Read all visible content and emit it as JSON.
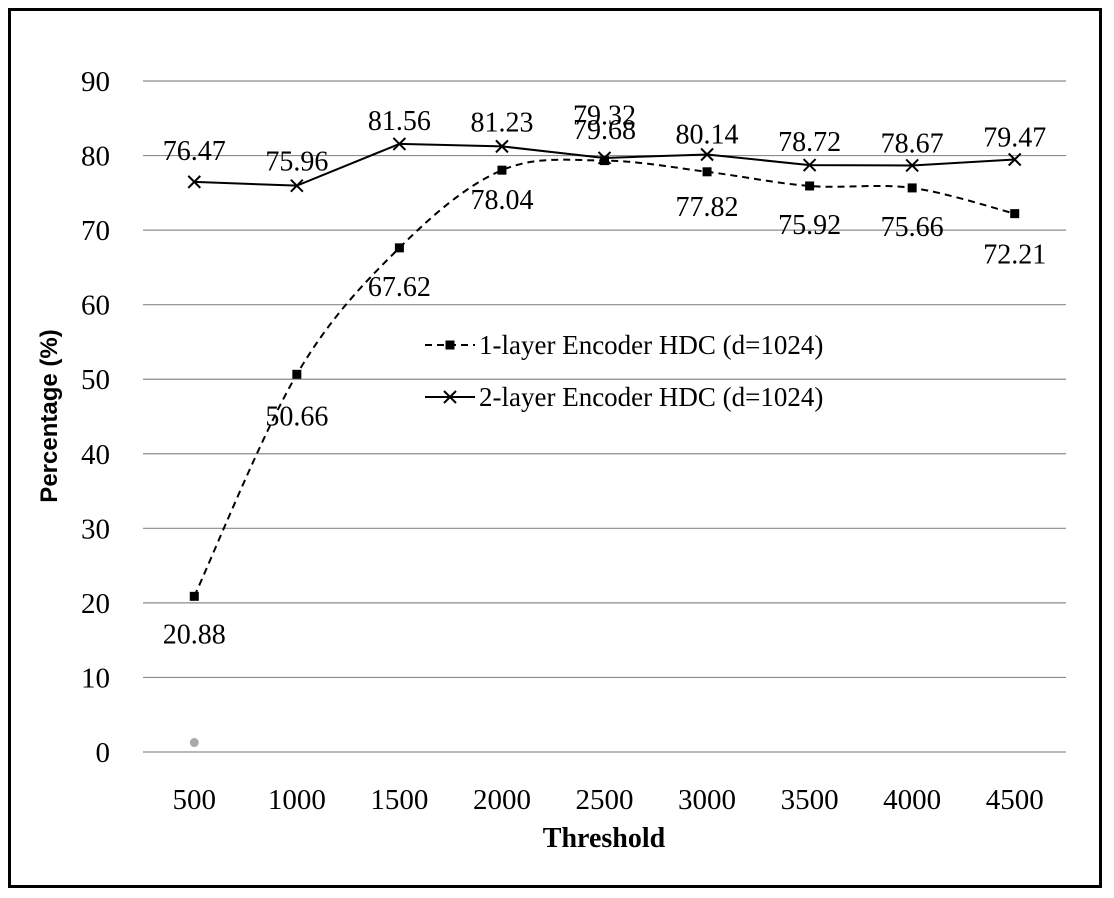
{
  "chart_data": {
    "type": "line",
    "xlabel": "Threshold",
    "ylabel": "Percentage (%)",
    "categories": [
      "500",
      "1000",
      "1500",
      "2000",
      "2500",
      "3000",
      "3500",
      "4000",
      "4500"
    ],
    "ylim": [
      0,
      90
    ],
    "yticks": [
      "0",
      "10",
      "20",
      "30",
      "40",
      "50",
      "60",
      "70",
      "80",
      "90"
    ],
    "grid": "horizontal",
    "legend_position": "center-right",
    "series": [
      {
        "name": "1-layer Encoder HDC (d=1024)",
        "style": "dashed",
        "marker": "square",
        "color": "#000000",
        "values": [
          20.88,
          50.66,
          67.62,
          78.04,
          79.32,
          77.82,
          75.92,
          75.66,
          72.21
        ],
        "labels": [
          "20.88",
          "50.66",
          "67.62",
          "78.04",
          "79.32",
          "77.82",
          "75.92",
          "75.66",
          "72.21"
        ]
      },
      {
        "name": "2-layer Encoder HDC (d=1024)",
        "style": "solid",
        "marker": "x",
        "color": "#000000",
        "values": [
          76.47,
          75.96,
          81.56,
          81.23,
          79.68,
          80.14,
          78.72,
          78.67,
          79.47
        ],
        "labels": [
          "76.47",
          "75.96",
          "81.56",
          "81.23",
          "79.68",
          "80.14",
          "78.72",
          "78.67",
          "79.47"
        ]
      }
    ],
    "stray_point": {
      "x": "500",
      "y": 1,
      "color": "#aaaaaa"
    }
  }
}
